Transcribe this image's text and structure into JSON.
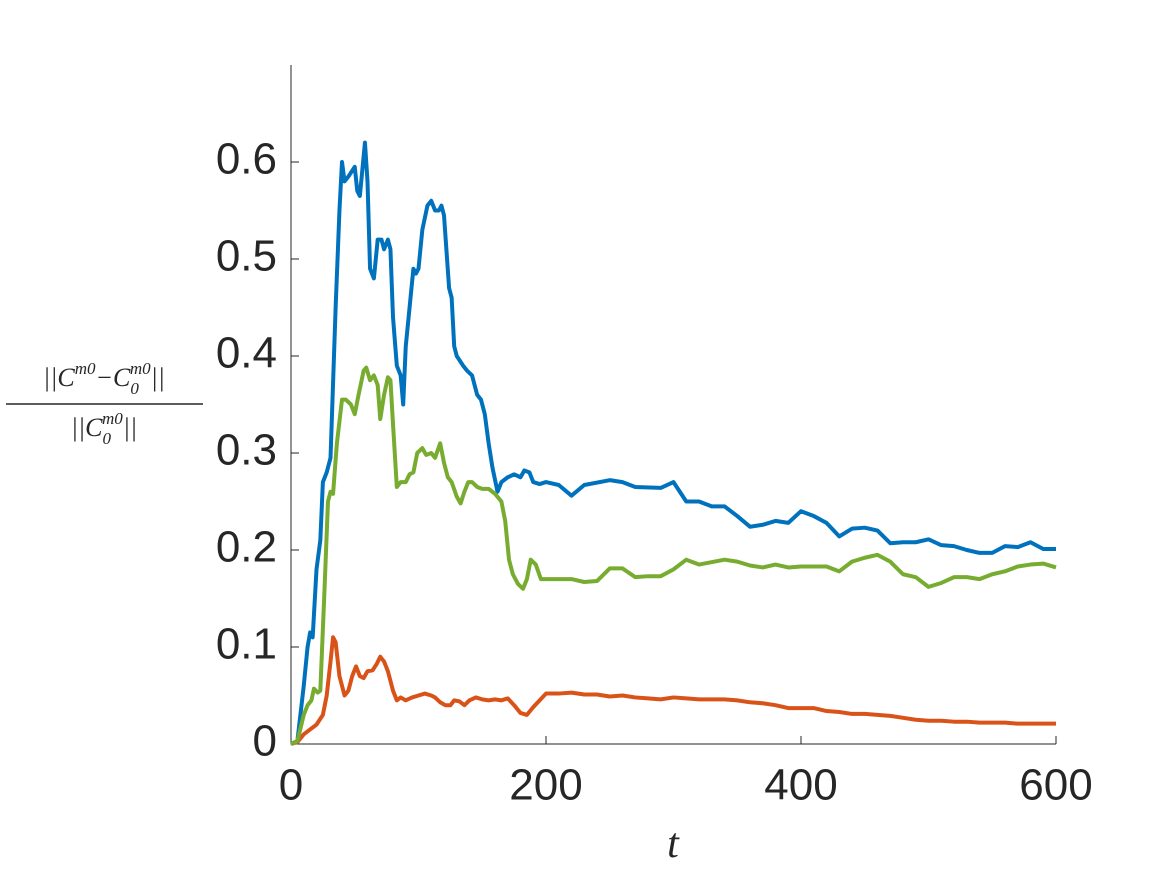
{
  "chart_data": {
    "type": "line",
    "xlabel": "t",
    "ylabel": {
      "numerator": [
        "||C",
        "m0",
        "−C",
        "0",
        "m0",
        "||"
      ],
      "denominator": [
        "||C",
        "0",
        "m0",
        "||"
      ]
    },
    "xlim": [
      0,
      600
    ],
    "xticks": [
      0,
      200,
      400,
      600
    ],
    "ylim": [
      0,
      0.7
    ],
    "yticks": [
      0,
      0.1,
      0.2,
      0.3,
      0.4,
      0.5,
      0.6
    ],
    "grid": false,
    "series": [
      {
        "color": "#0072bd",
        "x": [
          0,
          5,
          10,
          13,
          15,
          17,
          20,
          23,
          25,
          28,
          31,
          35,
          38,
          40,
          42,
          45,
          50,
          52,
          54,
          58,
          60,
          62,
          65,
          68,
          71,
          73,
          76,
          78,
          80,
          83,
          86,
          88,
          90,
          93,
          96,
          98,
          100,
          103,
          107,
          110,
          113,
          116,
          118,
          120,
          124,
          126,
          128,
          130,
          135,
          138,
          142,
          146,
          149,
          152,
          155,
          158,
          162,
          165,
          170,
          175,
          180,
          183,
          187,
          190,
          195,
          200,
          210,
          220,
          230,
          250,
          260,
          270,
          290,
          300,
          310,
          320,
          330,
          340,
          350,
          360,
          370,
          380,
          390,
          400,
          410,
          420,
          430,
          440,
          450,
          460,
          470,
          480,
          490,
          500,
          510,
          520,
          530,
          540,
          550,
          560,
          570,
          580,
          590,
          600
        ],
        "values": [
          0,
          0.003,
          0.06,
          0.1,
          0.115,
          0.11,
          0.18,
          0.21,
          0.27,
          0.28,
          0.295,
          0.45,
          0.55,
          0.6,
          0.58,
          0.585,
          0.595,
          0.57,
          0.565,
          0.62,
          0.58,
          0.49,
          0.48,
          0.52,
          0.52,
          0.51,
          0.52,
          0.51,
          0.44,
          0.39,
          0.38,
          0.35,
          0.41,
          0.45,
          0.49,
          0.485,
          0.49,
          0.53,
          0.555,
          0.56,
          0.55,
          0.55,
          0.555,
          0.545,
          0.47,
          0.46,
          0.41,
          0.4,
          0.39,
          0.385,
          0.38,
          0.36,
          0.355,
          0.34,
          0.31,
          0.285,
          0.26,
          0.27,
          0.275,
          0.278,
          0.275,
          0.282,
          0.28,
          0.27,
          0.268,
          0.27,
          0.267,
          0.256,
          0.267,
          0.272,
          0.27,
          0.265,
          0.264,
          0.27,
          0.25,
          0.25,
          0.245,
          0.245,
          0.235,
          0.224,
          0.226,
          0.23,
          0.228,
          0.24,
          0.235,
          0.228,
          0.214,
          0.222,
          0.223,
          0.22,
          0.207,
          0.208,
          0.208,
          0.211,
          0.205,
          0.204,
          0.2,
          0.197,
          0.197,
          0.204,
          0.203,
          0.208,
          0.201,
          0.201
        ]
      },
      {
        "color": "#d95319",
        "x": [
          0,
          5,
          10,
          15,
          20,
          25,
          28,
          31,
          33,
          35,
          38,
          42,
          45,
          48,
          51,
          54,
          57,
          60,
          64,
          67,
          70,
          73,
          76,
          80,
          83,
          86,
          90,
          95,
          100,
          105,
          110,
          113,
          117,
          121,
          125,
          128,
          132,
          136,
          140,
          145,
          150,
          155,
          160,
          165,
          170,
          175,
          180,
          185,
          190,
          195,
          200,
          210,
          220,
          230,
          240,
          250,
          260,
          270,
          280,
          290,
          300,
          310,
          320,
          340,
          350,
          360,
          370,
          380,
          390,
          400,
          410,
          420,
          430,
          440,
          450,
          460,
          470,
          480,
          490,
          500,
          510,
          520,
          530,
          540,
          560,
          570,
          580,
          600
        ],
        "values": [
          0,
          0.002,
          0.01,
          0.015,
          0.02,
          0.03,
          0.05,
          0.085,
          0.11,
          0.105,
          0.07,
          0.05,
          0.055,
          0.07,
          0.08,
          0.07,
          0.068,
          0.075,
          0.076,
          0.082,
          0.09,
          0.085,
          0.075,
          0.055,
          0.045,
          0.048,
          0.045,
          0.048,
          0.05,
          0.052,
          0.05,
          0.048,
          0.043,
          0.04,
          0.04,
          0.045,
          0.044,
          0.04,
          0.045,
          0.048,
          0.046,
          0.045,
          0.046,
          0.045,
          0.047,
          0.04,
          0.032,
          0.03,
          0.038,
          0.045,
          0.052,
          0.052,
          0.053,
          0.051,
          0.051,
          0.049,
          0.05,
          0.048,
          0.047,
          0.046,
          0.048,
          0.047,
          0.046,
          0.046,
          0.045,
          0.043,
          0.042,
          0.04,
          0.037,
          0.037,
          0.037,
          0.034,
          0.033,
          0.031,
          0.031,
          0.03,
          0.029,
          0.027,
          0.025,
          0.024,
          0.024,
          0.023,
          0.023,
          0.022,
          0.022,
          0.021,
          0.021,
          0.021
        ]
      },
      {
        "color": "#77ac30",
        "x": [
          0,
          5,
          10,
          13,
          16,
          18,
          21,
          23,
          26,
          29,
          31,
          33,
          36,
          40,
          43,
          47,
          50,
          53,
          57,
          59,
          62,
          65,
          68,
          70,
          73,
          76,
          78,
          80,
          83,
          86,
          90,
          93,
          96,
          99,
          103,
          106,
          110,
          113,
          117,
          120,
          123,
          126,
          130,
          133,
          136,
          139,
          142,
          146,
          150,
          155,
          160,
          165,
          168,
          171,
          174,
          178,
          182,
          185,
          188,
          192,
          196,
          210,
          220,
          230,
          240,
          250,
          260,
          270,
          280,
          290,
          300,
          310,
          320,
          340,
          350,
          360,
          370,
          380,
          390,
          400,
          420,
          430,
          440,
          450,
          460,
          470,
          480,
          490,
          500,
          510,
          520,
          530,
          540,
          550,
          560,
          570,
          580,
          590,
          600
        ],
        "values": [
          0,
          0.003,
          0.03,
          0.04,
          0.045,
          0.057,
          0.053,
          0.055,
          0.15,
          0.25,
          0.26,
          0.258,
          0.31,
          0.355,
          0.355,
          0.35,
          0.34,
          0.36,
          0.385,
          0.388,
          0.375,
          0.38,
          0.37,
          0.335,
          0.36,
          0.378,
          0.375,
          0.33,
          0.265,
          0.27,
          0.27,
          0.278,
          0.28,
          0.3,
          0.305,
          0.298,
          0.3,
          0.295,
          0.31,
          0.29,
          0.275,
          0.27,
          0.255,
          0.248,
          0.26,
          0.27,
          0.27,
          0.265,
          0.263,
          0.263,
          0.258,
          0.25,
          0.23,
          0.19,
          0.175,
          0.165,
          0.16,
          0.17,
          0.19,
          0.185,
          0.17,
          0.17,
          0.17,
          0.167,
          0.168,
          0.181,
          0.181,
          0.172,
          0.173,
          0.173,
          0.18,
          0.19,
          0.185,
          0.19,
          0.188,
          0.184,
          0.182,
          0.185,
          0.182,
          0.183,
          0.183,
          0.178,
          0.188,
          0.192,
          0.195,
          0.188,
          0.175,
          0.172,
          0.162,
          0.166,
          0.172,
          0.172,
          0.17,
          0.175,
          0.178,
          0.183,
          0.185,
          0.186,
          0.182
        ]
      }
    ]
  }
}
